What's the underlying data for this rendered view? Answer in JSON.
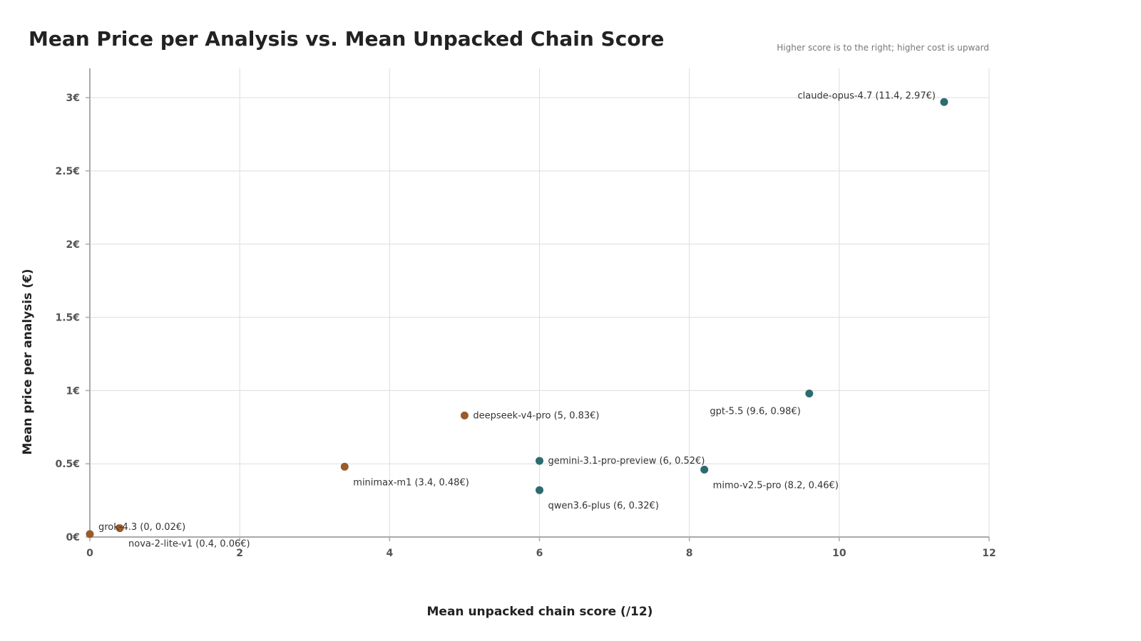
{
  "chart_data": {
    "type": "scatter",
    "title": "Mean Price per Analysis vs. Mean Unpacked Chain Score",
    "subtitle": "Higher score is to the right; higher cost is upward",
    "xlabel": "Mean unpacked chain score (/12)",
    "ylabel": "Mean price per analysis (€)",
    "xlim": [
      0,
      12
    ],
    "ylim": [
      0,
      3.2
    ],
    "x_ticks": [
      {
        "value": 0,
        "label": "0"
      },
      {
        "value": 2,
        "label": "2"
      },
      {
        "value": 4,
        "label": "4"
      },
      {
        "value": 6,
        "label": "6"
      },
      {
        "value": 8,
        "label": "8"
      },
      {
        "value": 10,
        "label": "10"
      },
      {
        "value": 12,
        "label": "12"
      }
    ],
    "y_ticks": [
      {
        "value": 0,
        "label": "0€"
      },
      {
        "value": 0.5,
        "label": "0.5€"
      },
      {
        "value": 1,
        "label": "1€"
      },
      {
        "value": 1.5,
        "label": "1.5€"
      },
      {
        "value": 2,
        "label": "2€"
      },
      {
        "value": 2.5,
        "label": "2.5€"
      },
      {
        "value": 3,
        "label": "3€"
      }
    ],
    "grid": true,
    "colors": {
      "group_a": "#2e6b70",
      "group_b": "#9a5a2a"
    },
    "points": [
      {
        "label": "claude-opus-4.7 (11.4, 2.97€)",
        "x": 11.4,
        "y": 2.97,
        "group": "group_a",
        "anchor": "left-above"
      },
      {
        "label": "gpt-5.5 (9.6, 0.98€)",
        "x": 9.6,
        "y": 0.98,
        "group": "group_a",
        "anchor": "left-below"
      },
      {
        "label": "mimo-v2.5-pro (8.2, 0.46€)",
        "x": 8.2,
        "y": 0.46,
        "group": "group_a",
        "anchor": "right-below"
      },
      {
        "label": "gemini-3.1-pro-preview (6, 0.52€)",
        "x": 6,
        "y": 0.52,
        "group": "group_a",
        "anchor": "right"
      },
      {
        "label": "qwen3.6-plus (6, 0.32€)",
        "x": 6,
        "y": 0.32,
        "group": "group_a",
        "anchor": "right-below"
      },
      {
        "label": "deepseek-v4-pro (5, 0.83€)",
        "x": 5,
        "y": 0.83,
        "group": "group_b",
        "anchor": "right"
      },
      {
        "label": "minimax-m1 (3.4, 0.48€)",
        "x": 3.4,
        "y": 0.48,
        "group": "group_b",
        "anchor": "right-below"
      },
      {
        "label": "nova-2-lite-v1 (0.4, 0.06€)",
        "x": 0.4,
        "y": 0.06,
        "group": "group_b",
        "anchor": "right-below"
      },
      {
        "label": "grok-4.3 (0, 0.02€)",
        "x": 0,
        "y": 0.02,
        "group": "group_b",
        "anchor": "right-above"
      }
    ]
  }
}
